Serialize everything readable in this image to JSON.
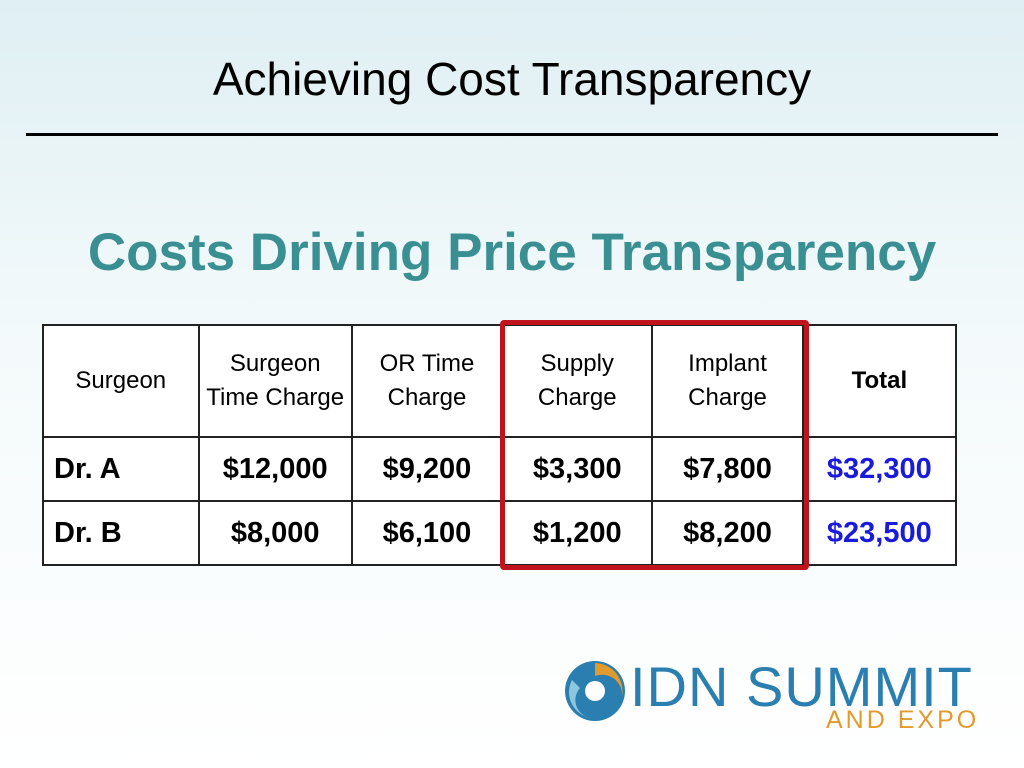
{
  "header": {
    "title": "Achieving Cost Transparency"
  },
  "subtitle": "Costs Driving Price Transparency",
  "table": {
    "columns": [
      "Surgeon",
      "Surgeon Time Charge",
      "OR Time Charge",
      "Supply Charge",
      "Implant Charge",
      "Total"
    ],
    "rows": [
      [
        "Dr. A",
        "$12,000",
        "$9,200",
        "$3,300",
        "$7,800",
        "$32,300"
      ],
      [
        "Dr. B",
        "$8,000",
        "$6,100",
        "$1,200",
        "$8,200",
        "$23,500"
      ]
    ]
  },
  "logo": {
    "name": "IDN SUMMIT",
    "tagline": "AND EXPO"
  }
}
